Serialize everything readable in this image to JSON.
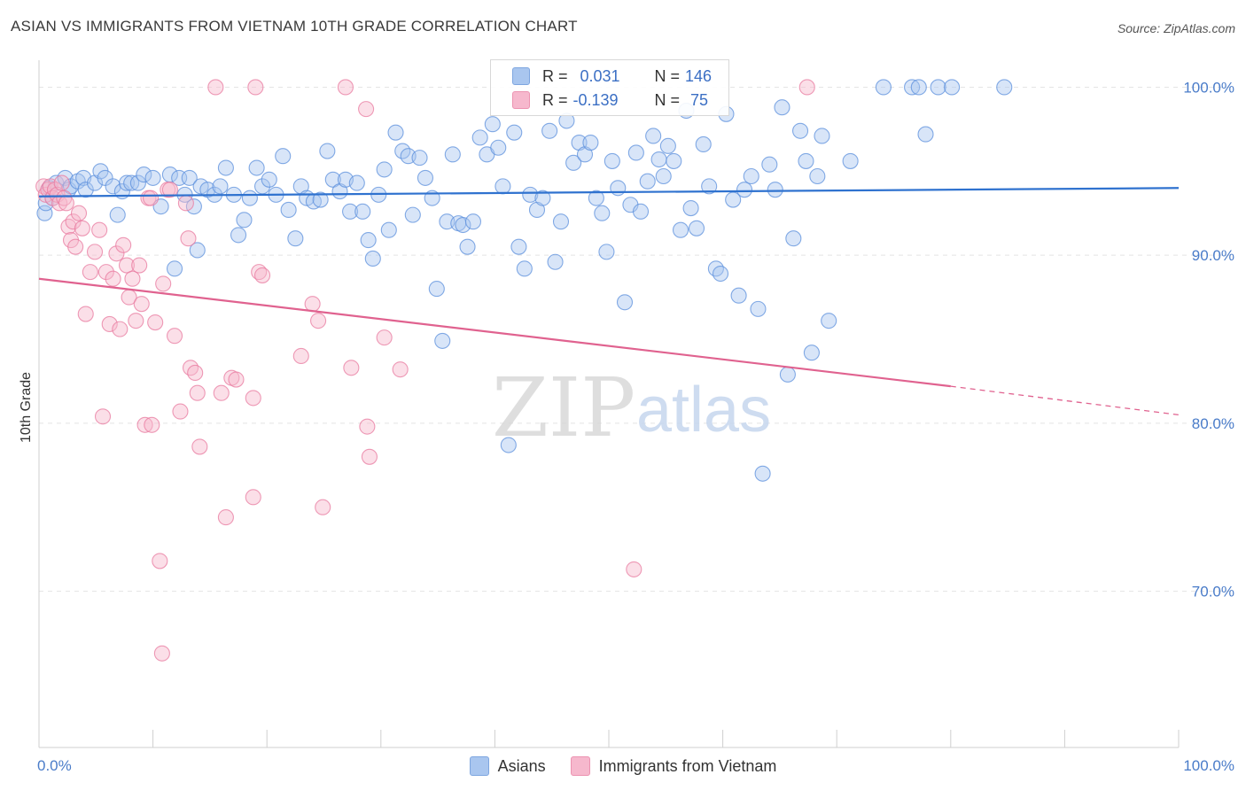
{
  "title": "ASIAN VS IMMIGRANTS FROM VIETNAM 10TH GRADE CORRELATION CHART",
  "source": "Source: ZipAtlas.com",
  "watermark": {
    "zip": "ZIP",
    "atlas": "atlas"
  },
  "legend": {
    "rows": [
      {
        "r_label": "R =",
        "r_value": "0.031",
        "n_label": "N =",
        "n_value": "146",
        "color": "#a9c6ef"
      },
      {
        "r_label": "R =",
        "r_value": "-0.139",
        "n_label": "N =",
        "n_value": "75",
        "color": "#f6b8cd"
      }
    ]
  },
  "chart_data": {
    "type": "scatter",
    "xlabel": "",
    "ylabel": "10th Grade",
    "xlim": [
      0,
      100
    ],
    "ylim": [
      60.7,
      101.5
    ],
    "x_tick_labels": [
      "0.0%",
      "100.0%"
    ],
    "y_ticks": [
      70,
      80,
      90,
      100
    ],
    "y_tick_labels": [
      "70.0%",
      "80.0%",
      "90.0%",
      "100.0%"
    ],
    "grid": true,
    "legend_position": "top-center",
    "series": [
      {
        "name": "Asians",
        "color": "#5b8fdc",
        "fill": "#a9c6ef",
        "trend": {
          "x0": 0,
          "y0": 93.5,
          "x1": 100,
          "y1": 94.0
        },
        "points": [
          [
            0.5,
            92.5
          ],
          [
            0.6,
            93.1
          ],
          [
            0.9,
            94.0
          ],
          [
            1.2,
            93.4
          ],
          [
            1.5,
            94.3
          ],
          [
            2.3,
            94.6
          ],
          [
            2.6,
            93.9
          ],
          [
            2.8,
            94.1
          ],
          [
            3.4,
            94.4
          ],
          [
            3.9,
            94.6
          ],
          [
            4.1,
            93.9
          ],
          [
            4.9,
            94.3
          ],
          [
            5.4,
            95.0
          ],
          [
            5.8,
            94.6
          ],
          [
            6.5,
            94.1
          ],
          [
            6.9,
            92.4
          ],
          [
            7.3,
            93.8
          ],
          [
            7.7,
            94.3
          ],
          [
            8.1,
            94.3
          ],
          [
            8.7,
            94.3
          ],
          [
            9.2,
            94.8
          ],
          [
            10.0,
            94.6
          ],
          [
            10.7,
            92.9
          ],
          [
            11.5,
            94.8
          ],
          [
            11.9,
            89.2
          ],
          [
            12.3,
            94.6
          ],
          [
            12.8,
            93.6
          ],
          [
            13.2,
            94.6
          ],
          [
            13.6,
            92.9
          ],
          [
            13.9,
            90.3
          ],
          [
            14.2,
            94.1
          ],
          [
            14.8,
            93.9
          ],
          [
            15.4,
            93.6
          ],
          [
            15.9,
            94.1
          ],
          [
            16.4,
            95.2
          ],
          [
            17.1,
            93.6
          ],
          [
            17.5,
            91.2
          ],
          [
            18.0,
            92.1
          ],
          [
            18.5,
            93.4
          ],
          [
            19.1,
            95.2
          ],
          [
            19.6,
            94.1
          ],
          [
            20.2,
            94.5
          ],
          [
            20.8,
            93.6
          ],
          [
            21.4,
            95.9
          ],
          [
            21.9,
            92.7
          ],
          [
            22.5,
            91.0
          ],
          [
            23.0,
            94.1
          ],
          [
            23.5,
            93.4
          ],
          [
            24.1,
            93.2
          ],
          [
            24.7,
            93.3
          ],
          [
            25.3,
            96.2
          ],
          [
            25.8,
            94.5
          ],
          [
            26.4,
            93.8
          ],
          [
            26.9,
            94.5
          ],
          [
            27.3,
            92.6
          ],
          [
            27.9,
            94.3
          ],
          [
            28.4,
            92.6
          ],
          [
            28.9,
            90.9
          ],
          [
            29.3,
            89.8
          ],
          [
            29.8,
            93.6
          ],
          [
            30.3,
            95.1
          ],
          [
            30.7,
            91.5
          ],
          [
            31.3,
            97.3
          ],
          [
            31.9,
            96.2
          ],
          [
            32.4,
            95.9
          ],
          [
            32.8,
            92.4
          ],
          [
            33.4,
            95.8
          ],
          [
            33.9,
            94.6
          ],
          [
            34.5,
            93.4
          ],
          [
            34.9,
            88.0
          ],
          [
            35.4,
            84.9
          ],
          [
            35.8,
            92.0
          ],
          [
            36.3,
            96.0
          ],
          [
            36.8,
            91.9
          ],
          [
            37.2,
            91.8
          ],
          [
            37.6,
            90.5
          ],
          [
            38.1,
            92.0
          ],
          [
            38.7,
            97.0
          ],
          [
            39.3,
            96.0
          ],
          [
            39.8,
            97.8
          ],
          [
            40.3,
            96.4
          ],
          [
            40.7,
            94.1
          ],
          [
            41.2,
            78.7
          ],
          [
            41.7,
            97.3
          ],
          [
            42.1,
            90.5
          ],
          [
            42.6,
            89.2
          ],
          [
            43.1,
            93.6
          ],
          [
            43.7,
            92.7
          ],
          [
            44.2,
            93.4
          ],
          [
            44.8,
            97.4
          ],
          [
            45.3,
            89.6
          ],
          [
            45.8,
            92.0
          ],
          [
            46.3,
            98.0
          ],
          [
            46.9,
            95.5
          ],
          [
            47.4,
            96.7
          ],
          [
            47.9,
            96.0
          ],
          [
            48.4,
            96.7
          ],
          [
            48.9,
            93.4
          ],
          [
            49.4,
            92.5
          ],
          [
            49.8,
            90.2
          ],
          [
            50.3,
            95.6
          ],
          [
            50.8,
            94.0
          ],
          [
            51.4,
            87.2
          ],
          [
            51.9,
            93.0
          ],
          [
            52.4,
            96.1
          ],
          [
            52.8,
            92.6
          ],
          [
            53.4,
            94.4
          ],
          [
            53.9,
            97.1
          ],
          [
            54.4,
            95.7
          ],
          [
            54.8,
            94.7
          ],
          [
            55.2,
            96.5
          ],
          [
            55.7,
            95.6
          ],
          [
            56.3,
            91.5
          ],
          [
            56.8,
            98.6
          ],
          [
            57.2,
            92.8
          ],
          [
            57.7,
            91.6
          ],
          [
            58.3,
            96.6
          ],
          [
            58.8,
            94.1
          ],
          [
            59.4,
            89.2
          ],
          [
            59.8,
            88.9
          ],
          [
            60.3,
            98.4
          ],
          [
            60.9,
            93.3
          ],
          [
            61.4,
            87.6
          ],
          [
            61.9,
            93.9
          ],
          [
            62.5,
            94.7
          ],
          [
            63.1,
            86.8
          ],
          [
            63.5,
            77.0
          ],
          [
            64.1,
            95.4
          ],
          [
            64.6,
            93.9
          ],
          [
            65.2,
            98.8
          ],
          [
            65.7,
            82.9
          ],
          [
            66.2,
            91.0
          ],
          [
            66.8,
            97.4
          ],
          [
            67.3,
            95.6
          ],
          [
            67.8,
            84.2
          ],
          [
            68.3,
            94.7
          ],
          [
            68.7,
            97.1
          ],
          [
            69.3,
            86.1
          ],
          [
            71.2,
            95.6
          ],
          [
            74.1,
            100.0
          ],
          [
            76.6,
            100.0
          ],
          [
            77.2,
            100.0
          ],
          [
            77.8,
            97.2
          ],
          [
            78.9,
            100.0
          ],
          [
            80.1,
            100.0
          ],
          [
            84.7,
            100.0
          ]
        ]
      },
      {
        "name": "Immigrants from Vietnam",
        "color": "#e8799f",
        "fill": "#f6b8cd",
        "trend": {
          "x0": 0,
          "y0": 88.6,
          "x1": 80,
          "y1": 82.2,
          "x2": 100,
          "y2": 80.5
        },
        "points": [
          [
            0.4,
            94.1
          ],
          [
            0.6,
            93.6
          ],
          [
            0.8,
            93.9
          ],
          [
            1.0,
            94.1
          ],
          [
            1.2,
            93.4
          ],
          [
            1.4,
            93.9
          ],
          [
            1.6,
            93.6
          ],
          [
            1.8,
            93.1
          ],
          [
            2.0,
            94.3
          ],
          [
            2.2,
            93.4
          ],
          [
            2.4,
            93.1
          ],
          [
            2.6,
            91.7
          ],
          [
            2.8,
            90.9
          ],
          [
            3.0,
            92.0
          ],
          [
            3.2,
            90.5
          ],
          [
            3.5,
            92.5
          ],
          [
            3.8,
            91.6
          ],
          [
            4.1,
            86.5
          ],
          [
            4.5,
            89.0
          ],
          [
            4.9,
            90.2
          ],
          [
            5.3,
            91.5
          ],
          [
            5.6,
            80.4
          ],
          [
            5.9,
            89.0
          ],
          [
            6.2,
            85.9
          ],
          [
            6.5,
            88.6
          ],
          [
            6.8,
            90.1
          ],
          [
            7.1,
            85.6
          ],
          [
            7.4,
            90.6
          ],
          [
            7.7,
            89.4
          ],
          [
            7.9,
            87.5
          ],
          [
            8.2,
            88.6
          ],
          [
            8.5,
            86.1
          ],
          [
            8.8,
            89.4
          ],
          [
            9.0,
            87.1
          ],
          [
            9.3,
            79.9
          ],
          [
            9.6,
            93.4
          ],
          [
            9.9,
            79.9
          ],
          [
            10.2,
            86.0
          ],
          [
            10.6,
            71.8
          ],
          [
            10.8,
            66.3
          ],
          [
            10.9,
            88.3
          ],
          [
            11.3,
            93.9
          ],
          [
            11.5,
            93.9
          ],
          [
            11.9,
            85.2
          ],
          [
            12.4,
            80.7
          ],
          [
            12.9,
            93.1
          ],
          [
            13.1,
            91.0
          ],
          [
            13.3,
            83.3
          ],
          [
            13.7,
            83.0
          ],
          [
            13.9,
            81.8
          ],
          [
            14.1,
            78.6
          ],
          [
            16.0,
            81.8
          ],
          [
            16.4,
            74.4
          ],
          [
            16.9,
            82.7
          ],
          [
            17.3,
            82.6
          ],
          [
            18.8,
            81.5
          ],
          [
            18.8,
            75.6
          ],
          [
            19.3,
            89.0
          ],
          [
            19.6,
            88.8
          ],
          [
            19.0,
            100.0
          ],
          [
            23.0,
            84.0
          ],
          [
            24.0,
            87.1
          ],
          [
            24.5,
            86.1
          ],
          [
            24.9,
            75.0
          ],
          [
            26.9,
            100.0
          ],
          [
            27.4,
            83.3
          ],
          [
            28.7,
            98.7
          ],
          [
            28.8,
            79.8
          ],
          [
            29.0,
            78.0
          ],
          [
            30.3,
            85.1
          ],
          [
            31.7,
            83.2
          ],
          [
            15.5,
            100.0
          ],
          [
            52.2,
            71.3
          ],
          [
            67.4,
            100.0
          ],
          [
            9.8,
            93.4
          ]
        ]
      }
    ]
  }
}
